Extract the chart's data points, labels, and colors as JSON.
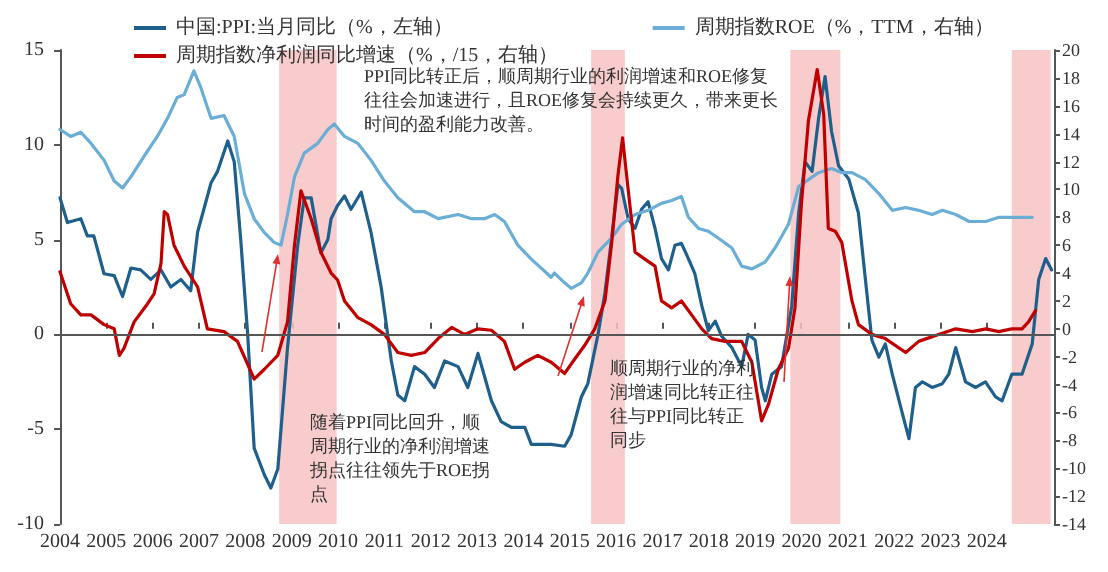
{
  "chart_data": {
    "type": "line",
    "xlim": [
      2004,
      2025.45
    ],
    "xticks": [
      2004,
      2005,
      2006,
      2007,
      2008,
      2009,
      2010,
      2011,
      2012,
      2013,
      2014,
      2015,
      2016,
      2017,
      2018,
      2019,
      2020,
      2021,
      2022,
      2023,
      2024
    ],
    "ylim": [
      -10,
      15
    ],
    "yticks": [
      -10,
      -5,
      0,
      5,
      10,
      15
    ],
    "y2lim": [
      -14,
      20
    ],
    "y2ticks": [
      -14,
      -12,
      -10,
      -8,
      -6,
      -4,
      -2,
      0,
      2,
      4,
      6,
      8,
      10,
      12,
      14,
      16,
      18,
      20
    ],
    "grid": false,
    "legend": "top",
    "marker": "none",
    "line_style": "solid",
    "series": [
      {
        "name": "中国:PPI:当月同比（%，左轴）",
        "color": "#1f5f8b",
        "x": [
          2004.0,
          2004.16,
          2004.45,
          2004.59,
          2004.73,
          2004.95,
          2005.17,
          2005.35,
          2005.53,
          2005.74,
          2005.96,
          2006.18,
          2006.39,
          2006.61,
          2006.82,
          2006.97,
          2007.26,
          2007.4,
          2007.62,
          2007.76,
          2007.9,
          2008.05,
          2008.19,
          2008.41,
          2008.55,
          2008.7,
          2008.91,
          2009.13,
          2009.27,
          2009.42,
          2009.63,
          2009.78,
          2009.85,
          2009.99,
          2010.14,
          2010.28,
          2010.5,
          2010.71,
          2010.93,
          2011.15,
          2011.29,
          2011.44,
          2011.65,
          2011.87,
          2012.08,
          2012.3,
          2012.59,
          2012.8,
          2013.02,
          2013.31,
          2013.52,
          2013.74,
          2014.03,
          2014.17,
          2014.6,
          2014.89,
          2015.03,
          2015.25,
          2015.39,
          2015.61,
          2015.76,
          2015.9,
          2016.04,
          2016.12,
          2016.26,
          2016.41,
          2016.55,
          2016.69,
          2016.84,
          2016.98,
          2017.13,
          2017.27,
          2017.41,
          2017.56,
          2017.7,
          2017.85,
          2017.99,
          2018.14,
          2018.28,
          2018.5,
          2018.71,
          2018.85,
          2019.0,
          2019.14,
          2019.22,
          2019.36,
          2019.57,
          2019.79,
          2019.94,
          2020.08,
          2020.23,
          2020.37,
          2020.51,
          2020.65,
          2020.8,
          2021.02,
          2021.23,
          2021.38,
          2021.52,
          2021.67,
          2021.81,
          2021.96,
          2022.17,
          2022.32,
          2022.46,
          2022.61,
          2022.82,
          2023.04,
          2023.18,
          2023.33,
          2023.54,
          2023.76,
          2023.97,
          2024.19,
          2024.33,
          2024.54,
          2024.76,
          2024.98,
          2025.12,
          2025.27,
          2025.4
        ],
        "values": [
          7.2,
          5.9,
          6.1,
          5.2,
          5.2,
          3.2,
          3.1,
          2.0,
          3.5,
          3.4,
          2.9,
          3.4,
          2.5,
          2.9,
          2.3,
          5.4,
          8.0,
          8.6,
          10.2,
          9.1,
          5.0,
          0,
          -6.0,
          -7.4,
          -8.1,
          -7.1,
          -0.7,
          4.7,
          7.2,
          7.2,
          4.3,
          5.0,
          6.1,
          6.8,
          7.3,
          6.6,
          7.5,
          5.4,
          2.5,
          -1.4,
          -3.2,
          -3.5,
          -1.7,
          -2.1,
          -2.8,
          -1.4,
          -1.7,
          -2.8,
          -1.0,
          -3.5,
          -4.6,
          -4.9,
          -4.9,
          -5.8,
          -5.8,
          -5.9,
          -5.3,
          -3.3,
          -2.6,
          0,
          2.2,
          5.0,
          7.9,
          7.7,
          6.1,
          5.6,
          6.6,
          7.0,
          5.6,
          4.0,
          3.4,
          4.7,
          4.8,
          4.0,
          3.2,
          1.5,
          0.2,
          0.7,
          -0.1,
          -0.7,
          -1.7,
          0,
          -0.3,
          -2.8,
          -3.5,
          -2.1,
          -1.7,
          1.5,
          6.4,
          9.1,
          8.6,
          11.4,
          13.6,
          10.7,
          8.9,
          8.2,
          6.4,
          2.9,
          -0.3,
          -1.2,
          -0.5,
          -2.1,
          -4.1,
          -5.5,
          -2.8,
          -2.5,
          -2.8,
          -2.6,
          -2.1,
          -0.7,
          -2.5,
          -2.8,
          -2.5,
          -3.3,
          -3.5,
          -2.1,
          -2.1,
          -0.5,
          2.9,
          4.0,
          3.4
        ]
      },
      {
        "name": "周期指数ROE（%，TTM，右轴）",
        "color": "#6aaed6",
        "axis": "y2",
        "x": [
          2004.0,
          2004.23,
          2004.45,
          2004.67,
          2004.95,
          2005.17,
          2005.35,
          2005.53,
          2005.82,
          2006.1,
          2006.32,
          2006.53,
          2006.68,
          2006.89,
          2007.04,
          2007.26,
          2007.54,
          2007.76,
          2007.98,
          2008.19,
          2008.41,
          2008.62,
          2008.77,
          2008.91,
          2009.06,
          2009.27,
          2009.56,
          2009.78,
          2009.92,
          2010.14,
          2010.43,
          2010.71,
          2011.0,
          2011.29,
          2011.65,
          2011.87,
          2012.16,
          2012.59,
          2012.88,
          2013.16,
          2013.38,
          2013.59,
          2013.88,
          2014.17,
          2014.6,
          2014.67,
          2014.89,
          2015.03,
          2015.25,
          2015.39,
          2015.61,
          2015.9,
          2016.12,
          2016.41,
          2016.69,
          2016.98,
          2017.2,
          2017.41,
          2017.56,
          2017.78,
          2017.99,
          2018.21,
          2018.5,
          2018.71,
          2018.93,
          2019.22,
          2019.43,
          2019.72,
          2019.94,
          2020.15,
          2020.37,
          2020.65,
          2020.87,
          2021.09,
          2021.38,
          2021.67,
          2021.96,
          2022.25,
          2022.53,
          2022.82,
          2023.04,
          2023.33,
          2023.62,
          2023.98,
          2024.26,
          2024.54,
          2024.98
        ],
        "values": [
          14.3,
          13.8,
          14.1,
          13.3,
          12.1,
          10.6,
          10.1,
          10.9,
          12.4,
          13.8,
          15.1,
          16.6,
          16.8,
          18.5,
          17.3,
          15.1,
          15.3,
          13.8,
          9.7,
          7.9,
          6.9,
          6.2,
          6.0,
          8.2,
          10.9,
          12.6,
          13.3,
          14.3,
          14.7,
          13.8,
          13.3,
          12.1,
          10.6,
          9.4,
          8.4,
          8.4,
          7.9,
          8.2,
          7.9,
          7.9,
          8.2,
          7.7,
          6.0,
          5.0,
          3.7,
          4.0,
          3.3,
          2.9,
          3.3,
          4.0,
          5.5,
          6.5,
          7.5,
          8.2,
          8.5,
          9.0,
          9.2,
          9.5,
          8.0,
          7.2,
          7.0,
          6.5,
          5.8,
          4.5,
          4.3,
          4.8,
          5.8,
          7.5,
          10.2,
          10.7,
          11.2,
          11.5,
          11.2,
          11.2,
          10.7,
          9.7,
          8.5,
          8.7,
          8.5,
          8.2,
          8.5,
          8.2,
          7.7,
          7.7,
          8.0,
          8.0,
          8.0
        ]
      },
      {
        "name": "周期指数净利润同比增速（%，/15，右轴）",
        "color": "#c00000",
        "axis": "y2",
        "x": [
          2004.0,
          2004.23,
          2004.45,
          2004.67,
          2004.95,
          2005.17,
          2005.28,
          2005.38,
          2005.6,
          2005.89,
          2006.03,
          2006.18,
          2006.25,
          2006.32,
          2006.46,
          2006.68,
          2006.97,
          2007.18,
          2007.54,
          2007.83,
          2008.19,
          2008.41,
          2008.7,
          2008.91,
          2009.06,
          2009.2,
          2009.42,
          2009.63,
          2009.85,
          2009.99,
          2010.14,
          2010.43,
          2010.71,
          2011.0,
          2011.29,
          2011.58,
          2011.87,
          2012.16,
          2012.45,
          2012.73,
          2013.02,
          2013.31,
          2013.59,
          2013.81,
          2014.03,
          2014.31,
          2014.6,
          2014.89,
          2015.1,
          2015.32,
          2015.54,
          2015.76,
          2015.9,
          2016.04,
          2016.14,
          2016.26,
          2016.41,
          2016.62,
          2016.84,
          2016.98,
          2017.2,
          2017.41,
          2017.63,
          2017.85,
          2018.06,
          2018.35,
          2018.71,
          2018.93,
          2019.14,
          2019.29,
          2019.5,
          2019.72,
          2019.86,
          2020.0,
          2020.15,
          2020.34,
          2020.48,
          2020.58,
          2020.73,
          2020.87,
          2021.09,
          2021.23,
          2021.52,
          2021.81,
          2022.25,
          2022.53,
          2022.96,
          2023.33,
          2023.69,
          2023.98,
          2024.26,
          2024.54,
          2024.76,
          2024.9,
          2025.05
        ],
        "values": [
          4.1,
          1.8,
          1.0,
          1.0,
          0.3,
          0,
          -1.9,
          -1.4,
          0.5,
          1.8,
          2.5,
          4.7,
          8.4,
          8.2,
          6.0,
          4.5,
          3.0,
          0,
          -0.2,
          -0.9,
          -3.6,
          -2.9,
          -1.9,
          0.5,
          6.0,
          9.9,
          7.9,
          5.5,
          4.0,
          3.5,
          2.0,
          0.8,
          0.3,
          -0.4,
          -1.7,
          -1.9,
          -1.7,
          -0.7,
          0.1,
          -0.4,
          0,
          -0.1,
          -0.9,
          -2.9,
          -2.4,
          -1.9,
          -2.4,
          -3.2,
          -2.2,
          -1.2,
          0,
          2.0,
          6.0,
          11.0,
          13.7,
          10.0,
          5.5,
          5.0,
          4.5,
          2.0,
          1.5,
          2.0,
          1.0,
          0,
          -0.7,
          -0.9,
          -0.9,
          -2.4,
          -6.6,
          -5.4,
          -2.9,
          -1.4,
          1.5,
          9.0,
          14.9,
          18.6,
          15.4,
          7.2,
          7.0,
          6.2,
          2.0,
          0.3,
          -0.4,
          -0.7,
          -1.7,
          -0.9,
          -0.4,
          0,
          -0.2,
          0,
          -0.2,
          0,
          0,
          0.5,
          1.3
        ]
      }
    ],
    "ref_lines": [
      {
        "axis": "y",
        "value": 0,
        "color": "#555555"
      }
    ],
    "bands": [
      {
        "axis": "x",
        "from": 2008.73,
        "to": 2009.97,
        "color": "#f7c3c3"
      },
      {
        "axis": "x",
        "from": 2015.46,
        "to": 2016.19,
        "color": "#f7c3c3"
      },
      {
        "axis": "x",
        "from": 2019.76,
        "to": 2020.84,
        "color": "#f7c3c3"
      },
      {
        "axis": "x",
        "from": 2024.54,
        "to": 2025.38,
        "color": "#f7c3c3"
      }
    ],
    "annotations": [
      "PPI同比转正后，顺周期行业的利润增速和ROE修复往往会加速进行，且ROE修复会持续更久，带来更长时间的盈利能力改善。",
      "随着PPI同比回升，顺周期行业的净利润增速拐点往往领先于ROE拐点",
      "顺周期行业的净利润增速同比转正往往与PPI同比转正同步"
    ]
  }
}
